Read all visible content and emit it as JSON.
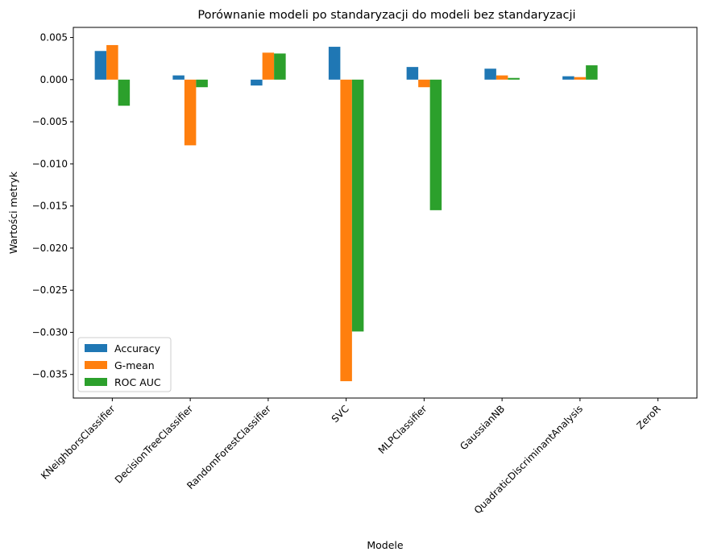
{
  "chart_data": {
    "type": "bar",
    "title": "Porównanie modeli po standaryzacji do modeli bez standaryzacji",
    "xlabel": "Modele",
    "ylabel": "Wartości metryk",
    "categories": [
      "KNeighborsClassifier",
      "DecisionTreeClassifier",
      "RandomForestClassifier",
      "SVC",
      "MLPClassifier",
      "GaussianNB",
      "QuadraticDiscriminantAnalysis",
      "ZeroR"
    ],
    "series": [
      {
        "name": "Accuracy",
        "color": "#1f77b4",
        "values": [
          0.0034,
          0.0005,
          -0.0007,
          0.0039,
          0.0015,
          0.0013,
          0.0004,
          0.0
        ]
      },
      {
        "name": "G-mean",
        "color": "#ff7f0e",
        "values": [
          0.0041,
          -0.0078,
          0.0032,
          -0.0358,
          -0.0009,
          0.0005,
          0.0003,
          0.0
        ]
      },
      {
        "name": "ROC AUC",
        "color": "#2ca02c",
        "values": [
          -0.0031,
          -0.0009,
          0.0031,
          -0.0299,
          -0.0155,
          0.0002,
          0.0017,
          0.0
        ]
      }
    ],
    "yticks": [
      0.005,
      0.0,
      -0.005,
      -0.01,
      -0.015,
      -0.02,
      -0.025,
      -0.03,
      -0.035
    ],
    "ytick_labels": [
      "0.005",
      "0.000",
      "−0.005",
      "−0.010",
      "−0.015",
      "−0.020",
      "−0.025",
      "−0.030",
      "−0.035"
    ],
    "ylim": [
      -0.0378,
      0.0062
    ],
    "grid": false,
    "legend_position": "lower-left"
  }
}
